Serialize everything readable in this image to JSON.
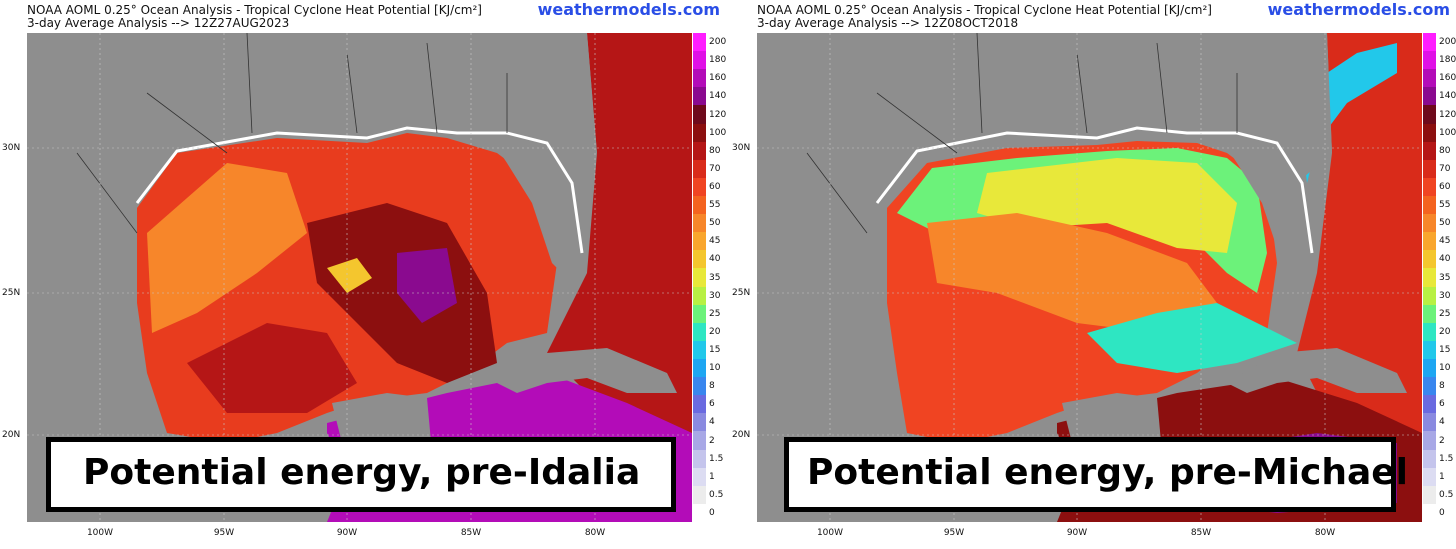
{
  "panels": [
    {
      "title_line1": "NOAA AOML 0.25° Ocean Analysis - Tropical Cyclone Heat Potential [KJ/cm²]",
      "title_line2": "3-day Average Analysis --> 12Z27AUG2023",
      "brand": "weathermodels.com",
      "caption": "Potential energy, pre-Idalia",
      "scheme": "warm"
    },
    {
      "title_line1": "NOAA AOML 0.25° Ocean Analysis - Tropical Cyclone Heat Potential [KJ/cm²]",
      "title_line2": "3-day Average Analysis --> 12Z08OCT2018",
      "brand": "weathermodels.com",
      "caption": "Potential energy, pre-Michael",
      "scheme": "mixed"
    }
  ],
  "lat_labels": [
    "30N",
    "25N",
    "20N"
  ],
  "lon_labels": [
    "100W",
    "95W",
    "90W",
    "85W",
    "80W"
  ],
  "colorbar": {
    "labels": [
      "200",
      "180",
      "160",
      "140",
      "120",
      "100",
      "80",
      "70",
      "60",
      "55",
      "50",
      "45",
      "40",
      "35",
      "30",
      "25",
      "20",
      "15",
      "10",
      "8",
      "6",
      "4",
      "2",
      "1.5",
      "1",
      "0.5",
      "0"
    ],
    "colors": [
      "#ff1cff",
      "#e010e6",
      "#b30cb8",
      "#8a0a8f",
      "#6e0a1c",
      "#8c0f0f",
      "#b51616",
      "#d92b1a",
      "#f04422",
      "#f4631f",
      "#f7862a",
      "#f9a62e",
      "#f4c62e",
      "#e8e83a",
      "#b8f044",
      "#6cf27a",
      "#2ee6c2",
      "#22c8ea",
      "#1ea6f2",
      "#3a86ee",
      "#6a6ae0",
      "#8a8ae0",
      "#a8a8e6",
      "#c4c4ec",
      "#dcdcf2",
      "#ececec",
      "#ffffff"
    ]
  }
}
